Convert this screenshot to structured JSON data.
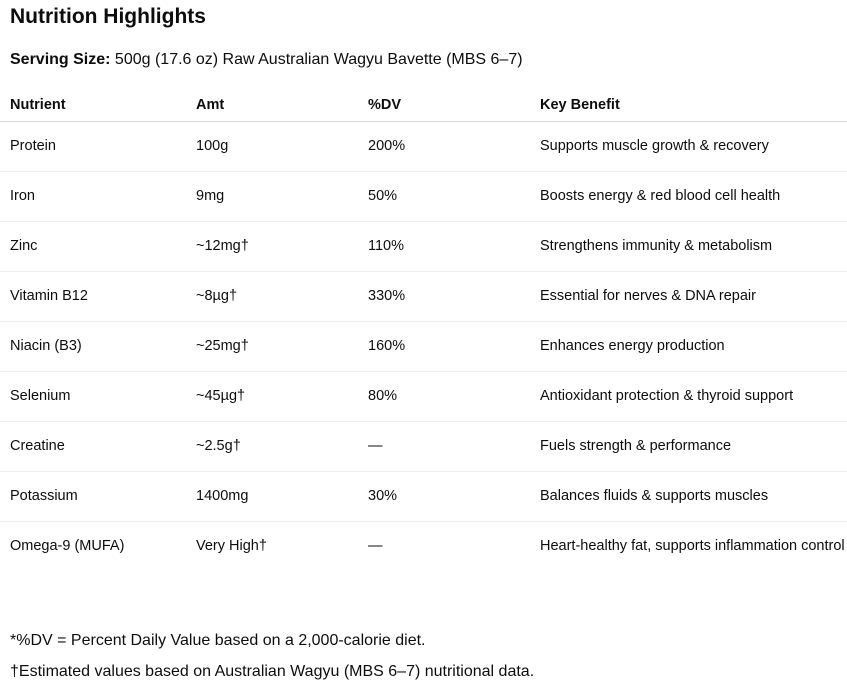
{
  "title": "Nutrition Highlights",
  "serving": {
    "label": "Serving Size:",
    "value": " 500g (17.6 oz) Raw Australian Wagyu Bavette (MBS 6–7)"
  },
  "table": {
    "headers": [
      "Nutrient",
      "Amt",
      "%DV",
      "Key Benefit"
    ],
    "rows": [
      [
        "Protein",
        "100g",
        "200%",
        "Supports muscle growth & recovery"
      ],
      [
        "Iron",
        "9mg",
        "50%",
        "Boosts energy & red blood cell health"
      ],
      [
        "Zinc",
        "~12mg†",
        "110%",
        "Strengthens immunity & metabolism"
      ],
      [
        "Vitamin B12",
        "~8µg†",
        "330%",
        "Essential for nerves & DNA repair"
      ],
      [
        "Niacin (B3)",
        "~25mg†",
        "160%",
        "Enhances energy production"
      ],
      [
        "Selenium",
        "~45µg†",
        "80%",
        "Antioxidant protection & thyroid support"
      ],
      [
        "Creatine",
        "~2.5g†",
        "—",
        "Fuels strength & performance"
      ],
      [
        "Potassium",
        "1400mg",
        "30%",
        "Balances fluids & supports muscles"
      ],
      [
        "Omega-9 (MUFA)",
        "Very High†",
        "—",
        "Heart-healthy fat, supports inflammation control"
      ]
    ]
  },
  "footnotes": [
    "*%DV = Percent Daily Value based on a 2,000-calorie diet.",
    "†Estimated values based on Australian Wagyu (MBS 6–7) nutritional data."
  ]
}
